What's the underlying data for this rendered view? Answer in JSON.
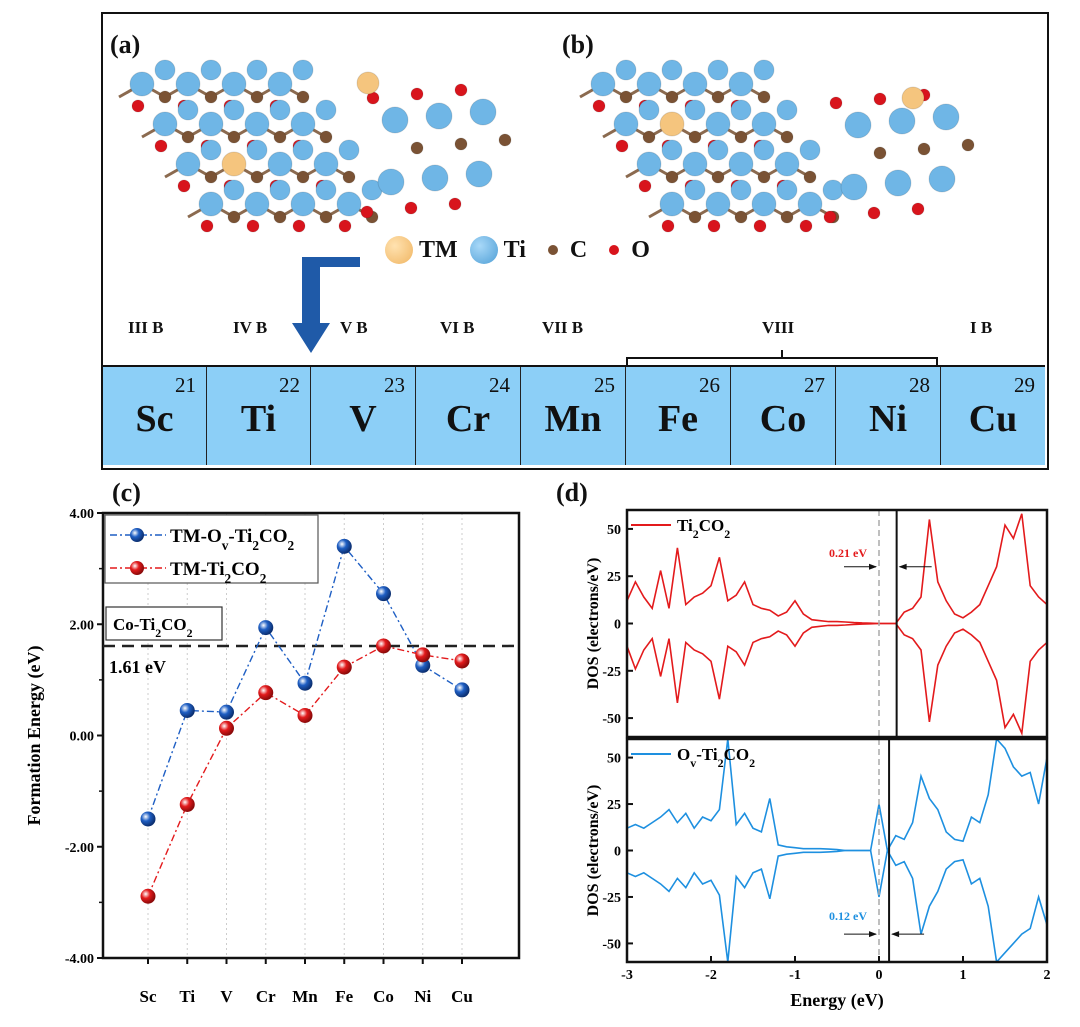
{
  "panels": {
    "a": "(a)",
    "b": "(b)",
    "c": "(c)",
    "d": "(d)"
  },
  "structure_legend": [
    {
      "label": "TM",
      "color": "#f5c57e"
    },
    {
      "label": "Ti",
      "color": "#6fb6e6"
    },
    {
      "label": "C",
      "color": "#7a5234"
    },
    {
      "label": "O",
      "color": "#d8141c"
    }
  ],
  "groups": [
    "III B",
    "IV B",
    "V B",
    "VI B",
    "VII B",
    "VIII",
    "I B"
  ],
  "elements": [
    {
      "symbol": "Sc",
      "number": "21"
    },
    {
      "symbol": "Ti",
      "number": "22"
    },
    {
      "symbol": "V",
      "number": "23"
    },
    {
      "symbol": "Cr",
      "number": "24"
    },
    {
      "symbol": "Mn",
      "number": "25"
    },
    {
      "symbol": "Fe",
      "number": "26"
    },
    {
      "symbol": "Co",
      "number": "27"
    },
    {
      "symbol": "Ni",
      "number": "28"
    },
    {
      "symbol": "Cu",
      "number": "29"
    }
  ],
  "colors": {
    "table_fill": "#8ccff7",
    "arrow": "#1f5aa8",
    "blue_series": "#1f5fc4",
    "red_series": "#e31a1c",
    "dos_red": "#e31a1c",
    "dos_blue": "#1e90e0"
  },
  "chart_data": [
    {
      "type": "line",
      "panel": "(c)",
      "ylabel": "Formation Energy (eV)",
      "xlabel": "",
      "categories": [
        "Sc",
        "Ti",
        "V",
        "Cr",
        "Mn",
        "Fe",
        "Co",
        "Ni",
        "Cu"
      ],
      "ylim": [
        -4,
        4
      ],
      "yticks": [
        "4.00",
        "2.00",
        "0.00",
        "-2.00",
        "-4.00"
      ],
      "ytick_values": [
        4,
        2,
        0,
        -2,
        -4
      ],
      "grid": "vertical dotted",
      "legend_placement": "top-left",
      "series": [
        {
          "name": "TM-Ov-Ti2CO2",
          "color": "#1f5fc4",
          "values": [
            -1.5,
            0.45,
            0.42,
            1.94,
            0.94,
            3.4,
            2.55,
            1.26,
            0.82
          ]
        },
        {
          "name": "TM-Ti2CO2",
          "color": "#e31a1c",
          "values": [
            -2.89,
            -1.24,
            0.13,
            0.77,
            0.36,
            1.23,
            1.61,
            1.45,
            1.34
          ]
        }
      ],
      "reference_line": {
        "y": 1.61,
        "label": "1.61 eV",
        "style": "dashed"
      },
      "annotation": "Co-Ti2CO2"
    },
    {
      "type": "line",
      "panel": "(d)",
      "xlabel": "Energy (eV)",
      "ylabel": "DOS (electrons/eV)",
      "xlim": [
        -3,
        2
      ],
      "xticks": [
        "-3",
        "-2",
        "-1",
        "0",
        "1",
        "2"
      ],
      "ylim": [
        -60,
        60
      ],
      "yticks": [
        "50",
        "25",
        "0",
        "-25",
        "-50"
      ],
      "x": [
        -3.0,
        -2.9,
        -2.8,
        -2.7,
        -2.6,
        -2.5,
        -2.4,
        -2.3,
        -2.2,
        -2.1,
        -2.0,
        -1.9,
        -1.8,
        -1.7,
        -1.6,
        -1.5,
        -1.4,
        -1.3,
        -1.2,
        -1.1,
        -1.0,
        -0.9,
        -0.8,
        -0.7,
        -0.6,
        -0.5,
        -0.4,
        -0.3,
        -0.2,
        -0.1,
        0.0,
        0.1,
        0.2,
        0.3,
        0.4,
        0.5,
        0.6,
        0.7,
        0.8,
        0.9,
        1.0,
        1.1,
        1.2,
        1.3,
        1.4,
        1.5,
        1.6,
        1.7,
        1.8,
        1.9,
        2.0
      ],
      "subplots": [
        {
          "name": "Ti2CO2",
          "color": "#e31a1c",
          "gap_label": "0.21 eV",
          "cbm": 0.21,
          "spin_up": [
            12,
            22,
            14,
            8,
            28,
            8,
            40,
            10,
            14,
            16,
            20,
            35,
            12,
            15,
            22,
            10,
            8,
            7,
            4,
            6,
            12,
            5,
            2,
            1.5,
            1,
            1,
            0.8,
            0.5,
            0.3,
            0.2,
            0,
            0,
            0,
            6,
            8,
            14,
            55,
            22,
            12,
            5,
            3,
            6,
            10,
            20,
            30,
            52,
            45,
            58,
            20,
            14,
            10
          ],
          "spin_down": [
            -12,
            -24,
            -14,
            -8,
            -28,
            -8,
            -42,
            -10,
            -14,
            -16,
            -20,
            -40,
            -12,
            -15,
            -22,
            -10,
            -8,
            -7,
            -4,
            -6,
            -12,
            -5,
            -2,
            -1.5,
            -1,
            -1,
            -0.8,
            -0.5,
            -0.3,
            -0.2,
            0,
            0,
            0,
            -6,
            -8,
            -14,
            -52,
            -22,
            -12,
            -5,
            -3,
            -6,
            -10,
            -20,
            -30,
            -55,
            -48,
            -58,
            -20,
            -14,
            -10
          ]
        },
        {
          "name": "Ov-Ti2CO2",
          "color": "#1e90e0",
          "gap_label": "0.12 eV",
          "cbm": 0.12,
          "spin_up": [
            12,
            14,
            12,
            15,
            18,
            22,
            15,
            20,
            12,
            18,
            16,
            22,
            60,
            14,
            20,
            12,
            10,
            28,
            3,
            2,
            1.5,
            1,
            1,
            1,
            0.8,
            0.5,
            0,
            0,
            0,
            0,
            25,
            0,
            8,
            6,
            15,
            40,
            28,
            22,
            10,
            6,
            5,
            18,
            15,
            30,
            60,
            55,
            45,
            40,
            42,
            25,
            50
          ],
          "spin_down": [
            -12,
            -14,
            -12,
            -15,
            -18,
            -22,
            -15,
            -20,
            -12,
            -18,
            -16,
            -24,
            -60,
            -14,
            -20,
            -12,
            -10,
            -26,
            -3,
            -2,
            -1.5,
            -1,
            -1,
            -1,
            -0.8,
            -0.5,
            0,
            0,
            0,
            0,
            -25,
            0,
            -8,
            -6,
            -15,
            -45,
            -30,
            -22,
            -10,
            -6,
            -5,
            -18,
            -15,
            -30,
            -60,
            -55,
            -50,
            -45,
            -42,
            -25,
            -40
          ]
        }
      ]
    }
  ]
}
